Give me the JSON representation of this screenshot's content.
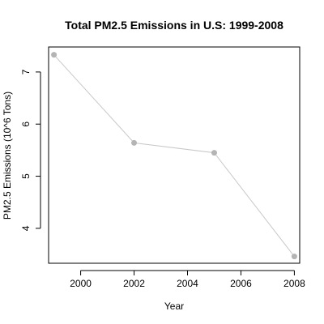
{
  "chart_data": {
    "type": "line",
    "title": "Total PM2.5 Emissions in U.S: 1999-2008",
    "xlabel": "Year",
    "ylabel": "PM2.5 Emissions (10^6 Tons)",
    "x": [
      1999,
      2002,
      2005,
      2008
    ],
    "series": [
      {
        "values": [
          7.33,
          5.64,
          5.45,
          3.46
        ]
      }
    ],
    "xlim": [
      1998.8,
      2008.2
    ],
    "ylim": [
      3.33,
      7.48
    ],
    "xticks": [
      2000,
      2002,
      2004,
      2006,
      2008
    ],
    "yticks": [
      4,
      5,
      6,
      7
    ],
    "grid": false,
    "line_color": "#c8c8c8",
    "point_color": "#b4b4b4"
  }
}
